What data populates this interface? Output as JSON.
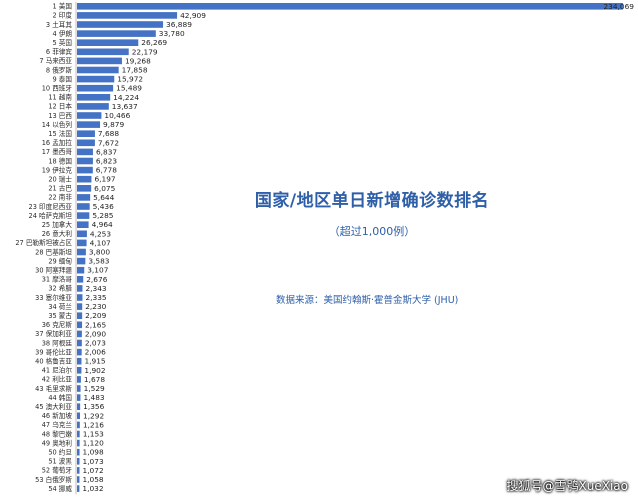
{
  "chart_data": {
    "type": "bar",
    "orientation": "horizontal",
    "title": "国家/地区单日新增确诊数排名",
    "subtitle": "（超过1,000例）",
    "source": "数据来源：美国约翰斯·霍普金斯大学 (JHU)",
    "bar_color": "#4472c4",
    "categories": [
      "1 美国",
      "2 印度",
      "3 土耳其",
      "4 伊朗",
      "5 英国",
      "6 菲律宾",
      "7 马来西亚",
      "8 俄罗斯",
      "9 泰国",
      "10 西班牙",
      "11 越南",
      "12 日本",
      "13 巴西",
      "14 以色列",
      "15 法国",
      "16 孟加拉",
      "17 墨西哥",
      "18 德国",
      "19 伊拉克",
      "20 瑞士",
      "21 古巴",
      "22 南非",
      "23 印度尼西亚",
      "24 哈萨克斯坦",
      "25 加拿大",
      "26 意大利",
      "27 巴勒斯坦被占区",
      "28 巴基斯坦",
      "29 缅甸",
      "30 阿塞拜疆",
      "31 摩洛哥",
      "32 希腊",
      "33 塞尔维亚",
      "34 荷兰",
      "35 蒙古",
      "36 克尼斯",
      "37 保加利亚",
      "38 阿根廷",
      "39 哥伦比亚",
      "40 格鲁吉亚",
      "41 尼泊尔",
      "42 利比亚",
      "43 毛里求斯",
      "44 韩国",
      "45 澳大利亚",
      "46 新加坡",
      "47 乌克兰",
      "48 黎巴嫩",
      "49 奥地利",
      "50 约旦",
      "51 波黑",
      "52 葡萄牙",
      "53 白俄罗斯",
      "54 挪威"
    ],
    "values_text": [
      "234,069",
      "42,909",
      "36,889",
      "33,780",
      "26,269",
      "22,179",
      "19,268",
      "17,858",
      "15,972",
      "15,489",
      "14,224",
      "13,637",
      "10,466",
      "9,879",
      "7,688",
      "7,672",
      "6,837",
      "6,823",
      "6,778",
      "6,197",
      "6,075",
      "5,644",
      "5,436",
      "5,285",
      "4,964",
      "4,253",
      "4,107",
      "3,800",
      "3,583",
      "3,107",
      "2,676",
      "2,343",
      "2,335",
      "2,230",
      "2,209",
      "2,165",
      "2,090",
      "2,073",
      "2,006",
      "1,915",
      "1,902",
      "1,678",
      "1,529",
      "1,483",
      "1,356",
      "1,292",
      "1,216",
      "1,153",
      "1,120",
      "1,098",
      "1,073",
      "1,072",
      "1,058",
      "1,032"
    ],
    "values": [
      234069,
      42909,
      36889,
      33780,
      26269,
      22179,
      19268,
      17858,
      15972,
      15489,
      14224,
      13637,
      10466,
      9879,
      7688,
      7672,
      6837,
      6823,
      6778,
      6197,
      6075,
      5644,
      5436,
      5285,
      4964,
      4253,
      4107,
      3800,
      3583,
      3107,
      2676,
      2343,
      2335,
      2230,
      2209,
      2165,
      2090,
      2073,
      2006,
      1915,
      1902,
      1678,
      1529,
      1483,
      1356,
      1292,
      1216,
      1153,
      1120,
      1098,
      1073,
      1072,
      1058,
      1032
    ],
    "xlim": [
      0,
      234069
    ],
    "grid": false,
    "legend": "none"
  },
  "watermark": "搜狐号@雪鸮XueXiao"
}
